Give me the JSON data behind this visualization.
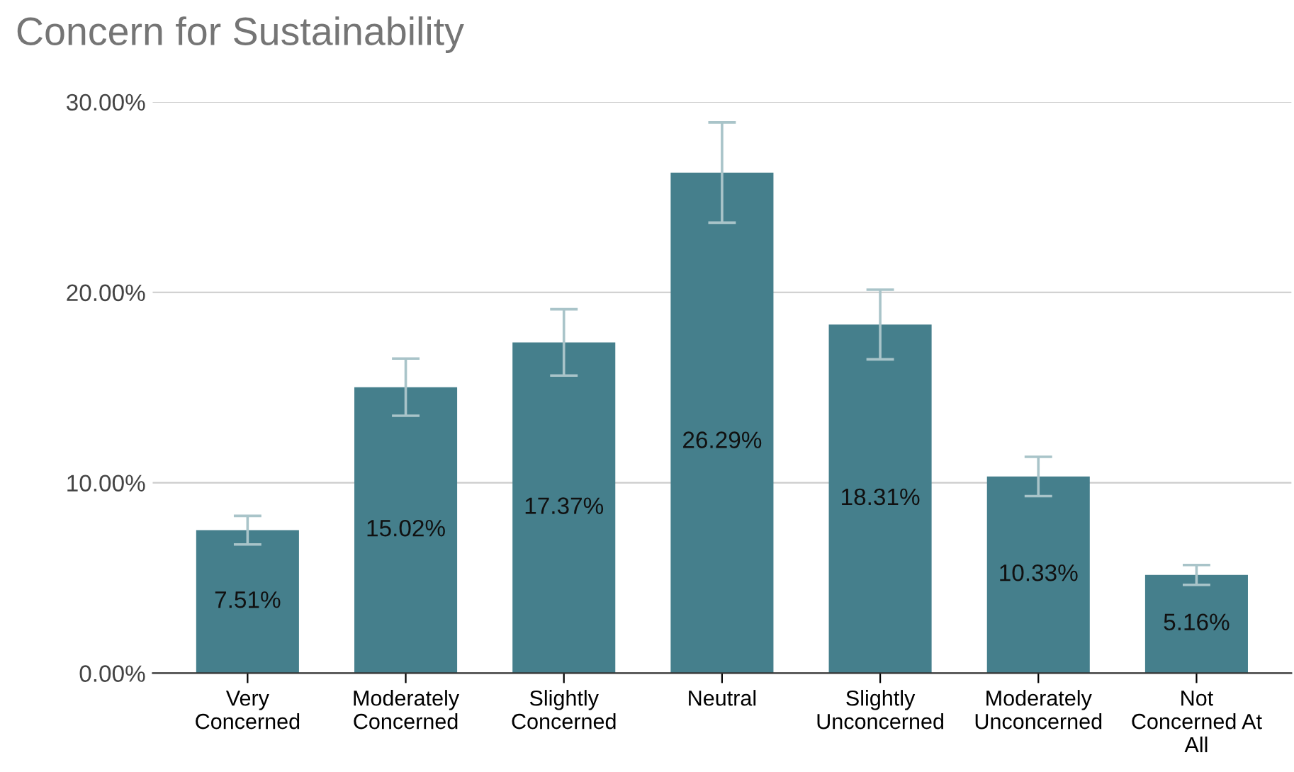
{
  "chart_data": {
    "type": "bar",
    "title": "Concern for Sustainability",
    "categories": [
      "Very\nConcerned",
      "Moderately\nConcerned",
      "Slightly\nConcerned",
      "Neutral",
      "Slightly\nUnconcerned",
      "Moderately\nUnconcerned",
      "Not\nConcerned At\nAll"
    ],
    "values": [
      7.51,
      15.02,
      17.37,
      26.29,
      18.31,
      10.33,
      5.16
    ],
    "errors": [
      0.75,
      1.5,
      1.74,
      2.63,
      1.83,
      1.03,
      0.52
    ],
    "value_labels": [
      "7.51%",
      "15.02%",
      "17.37%",
      "26.29%",
      "18.31%",
      "10.33%",
      "5.16%"
    ],
    "color": "#457f8c",
    "ylim": [
      0,
      30
    ],
    "yticks": [
      {
        "value": 0,
        "label": "0.00%"
      },
      {
        "value": 10,
        "label": "10.00%"
      },
      {
        "value": 20,
        "label": "20.00%"
      },
      {
        "value": 30,
        "label": "30.00%"
      }
    ],
    "grid": "y",
    "legend": false
  }
}
